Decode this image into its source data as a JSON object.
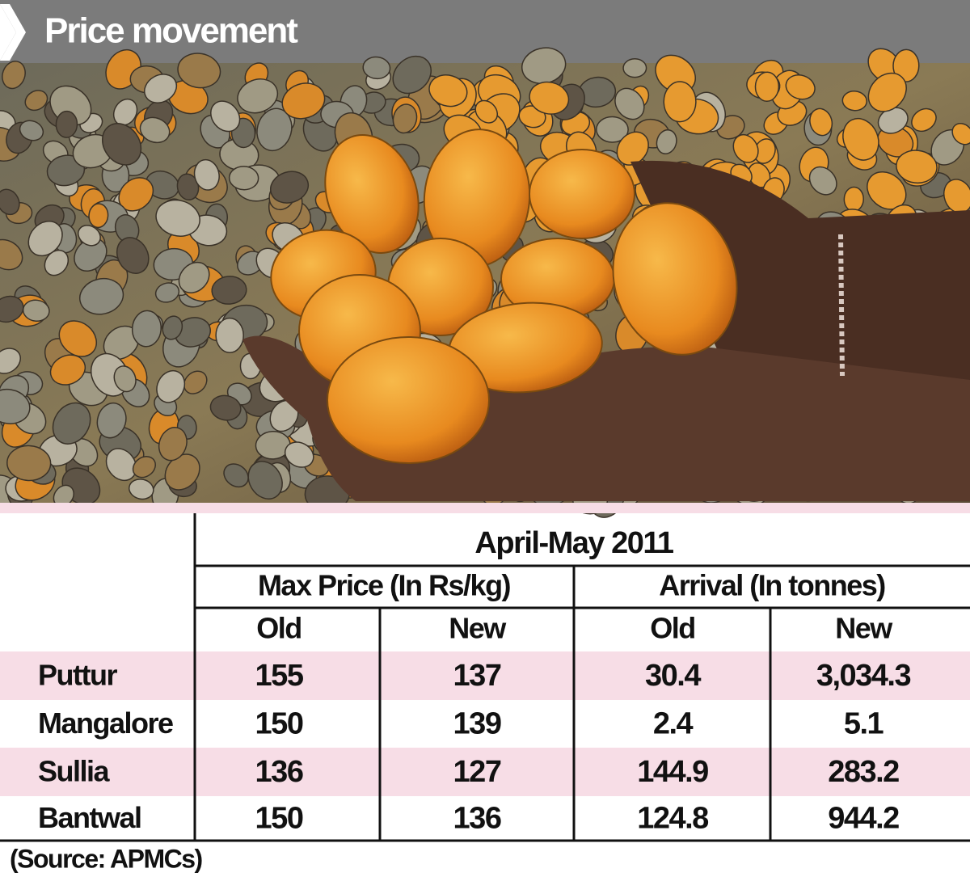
{
  "header": {
    "title": "Price movement"
  },
  "table": {
    "period": "April-May 2011",
    "groups": [
      "Max Price (In Rs/kg)",
      "Arrival (In tonnes)"
    ],
    "subheaders": [
      "Old",
      "New",
      "Old",
      "New"
    ],
    "rows": [
      [
        "Puttur",
        "155",
        "137",
        "30.4",
        "3,034.3"
      ],
      [
        "Mangalore",
        "150",
        "139",
        "2.4",
        "5.1"
      ],
      [
        "Sullia",
        "136",
        "127",
        "144.9",
        "283.2"
      ],
      [
        "Bantwal",
        "150",
        "136",
        "124.8",
        "944.2"
      ]
    ]
  },
  "footer": {
    "source": "(Source: APMCs)"
  }
}
